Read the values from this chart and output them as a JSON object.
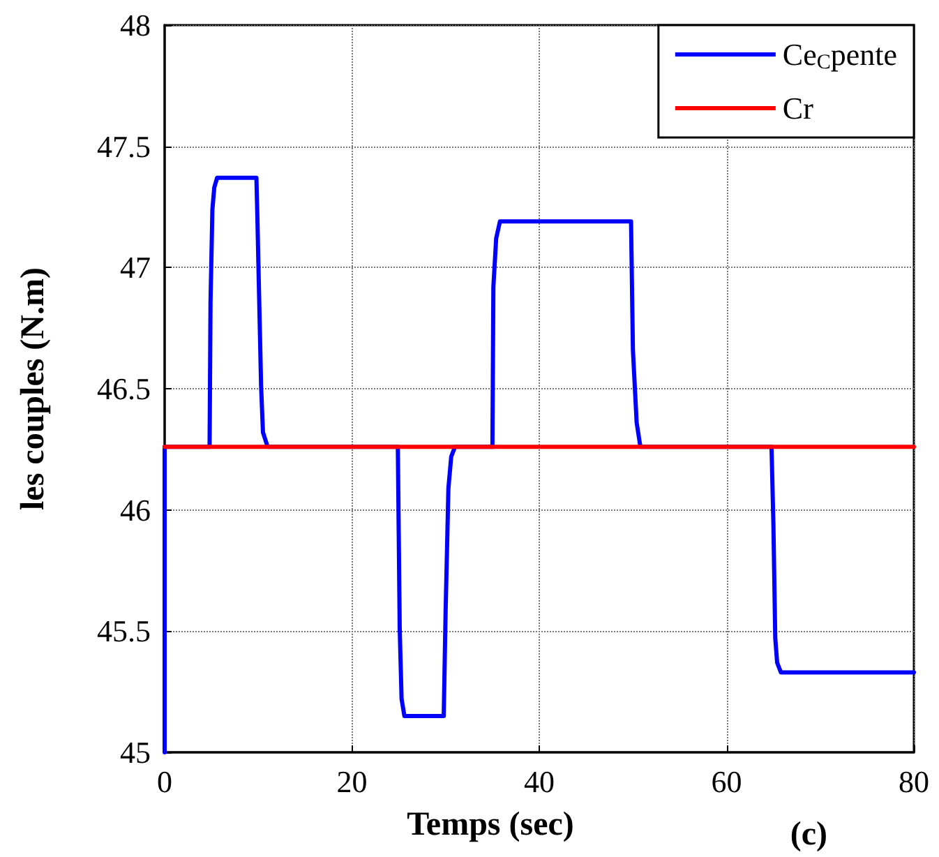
{
  "chart_data": {
    "type": "line",
    "xlabel": "Temps (sec)",
    "ylabel": "les couples (N.m)",
    "annotations": [
      "(c)"
    ],
    "xlim": [
      0,
      80
    ],
    "xticks": [
      0,
      20,
      40,
      60,
      80
    ],
    "ylim": [
      45,
      48
    ],
    "yticks": [
      45,
      45.5,
      46,
      46.5,
      47,
      47.5,
      48
    ],
    "grid": true,
    "legend": "top right",
    "marker": "none",
    "line_style": "solid",
    "series": [
      {
        "name": "Ce$_{C}$pente",
        "color": "#0000ff",
        "x": [
          0,
          0,
          4.8,
          4.9,
          5.1,
          5.3,
          5.6,
          9.8,
          9.9,
          10.3,
          10.5,
          11,
          24.9,
          25.1,
          25.3,
          25.6,
          29.8,
          30,
          30.3,
          30.6,
          31,
          35,
          35.1,
          35.4,
          35.8,
          49.8,
          50,
          50.4,
          50.8,
          64.8,
          65,
          65.2,
          65.4,
          65.8,
          80
        ],
        "values": [
          45,
          46.26,
          46.26,
          46.86,
          47.24,
          47.33,
          47.37,
          47.37,
          47.21,
          46.51,
          46.32,
          46.26,
          46.26,
          45.51,
          45.22,
          45.15,
          45.15,
          45.58,
          46.09,
          46.22,
          46.26,
          46.26,
          46.92,
          47.12,
          47.19,
          47.19,
          46.66,
          46.36,
          46.26,
          46.26,
          45.94,
          45.47,
          45.37,
          45.33,
          45.33
        ]
      },
      {
        "name": "Cr",
        "color": "#ff0000",
        "x": [
          0,
          80
        ],
        "values": [
          46.26,
          46.26
        ]
      }
    ]
  }
}
